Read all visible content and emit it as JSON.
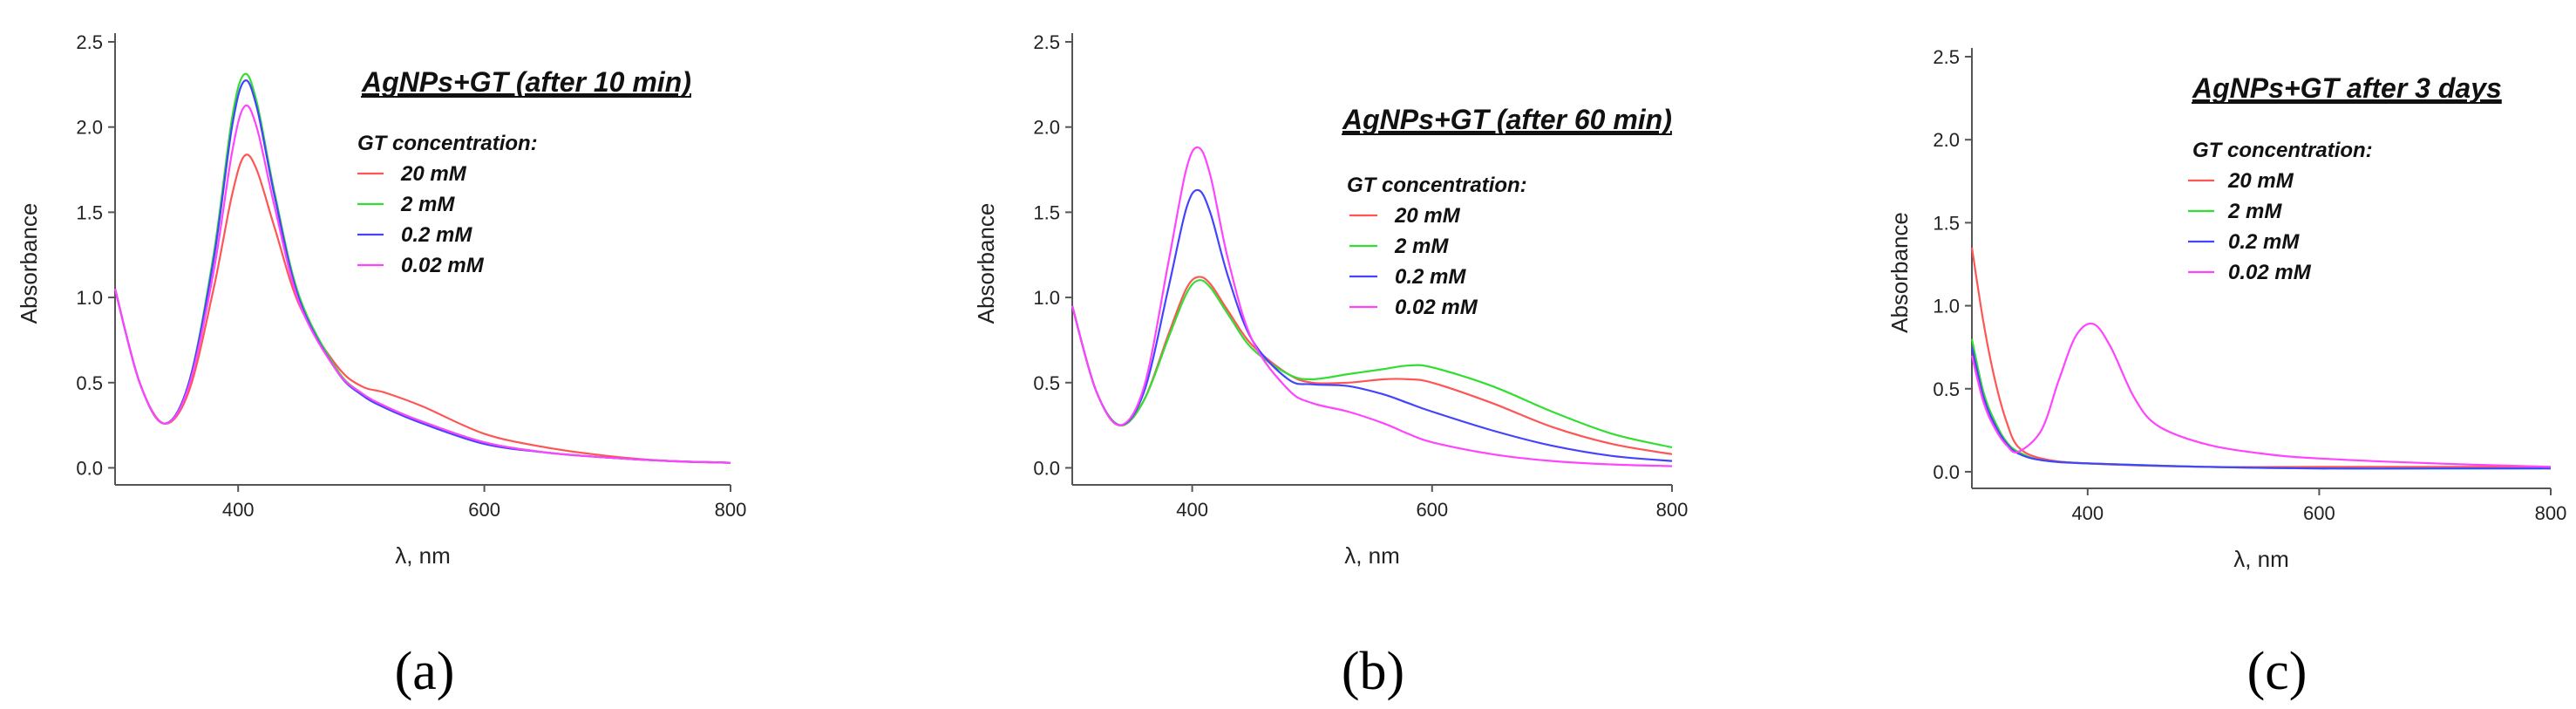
{
  "chart_data": [
    {
      "type": "line",
      "panel_label": "(a)",
      "title": "AgNPs+GT (after 10 min)",
      "xlabel": "λ, nm",
      "ylabel": "Absorbance",
      "xlim": [
        300,
        800
      ],
      "ylim": [
        -0.1,
        2.5
      ],
      "xticks": [
        400,
        600,
        800
      ],
      "yticks": [
        0.0,
        0.5,
        1.0,
        1.5,
        2.0,
        2.5
      ],
      "legend_title": "GT concentration:",
      "legend_position": "top-right",
      "series": [
        {
          "name": "20 mM",
          "color": "#ff5555",
          "x": [
            300,
            320,
            340,
            360,
            380,
            395,
            405,
            415,
            430,
            450,
            480,
            500,
            520,
            550,
            600,
            650,
            700,
            750,
            800
          ],
          "y": [
            1.05,
            0.5,
            0.26,
            0.45,
            1.05,
            1.6,
            1.83,
            1.75,
            1.4,
            0.95,
            0.6,
            0.48,
            0.44,
            0.36,
            0.2,
            0.12,
            0.07,
            0.04,
            0.03
          ]
        },
        {
          "name": "2 mM",
          "color": "#33dd33",
          "x": [
            300,
            320,
            340,
            360,
            380,
            395,
            405,
            415,
            430,
            450,
            480,
            500,
            520,
            550,
            600,
            650,
            700,
            750,
            800
          ],
          "y": [
            1.05,
            0.5,
            0.26,
            0.5,
            1.25,
            2.05,
            2.31,
            2.15,
            1.6,
            1.0,
            0.58,
            0.44,
            0.36,
            0.27,
            0.15,
            0.09,
            0.06,
            0.04,
            0.03
          ]
        },
        {
          "name": "0.2 mM",
          "color": "#4444ff",
          "x": [
            300,
            320,
            340,
            360,
            380,
            395,
            405,
            415,
            430,
            450,
            480,
            500,
            520,
            550,
            600,
            650,
            700,
            750,
            800
          ],
          "y": [
            1.05,
            0.5,
            0.26,
            0.5,
            1.22,
            2.0,
            2.27,
            2.12,
            1.58,
            0.98,
            0.57,
            0.43,
            0.35,
            0.26,
            0.14,
            0.09,
            0.06,
            0.04,
            0.03
          ]
        },
        {
          "name": "0.02 mM",
          "color": "#ff44ff",
          "x": [
            300,
            320,
            340,
            360,
            380,
            395,
            405,
            415,
            430,
            450,
            480,
            500,
            520,
            550,
            600,
            650,
            700,
            750,
            800
          ],
          "y": [
            1.05,
            0.5,
            0.26,
            0.48,
            1.15,
            1.85,
            2.12,
            2.0,
            1.52,
            0.96,
            0.57,
            0.44,
            0.36,
            0.27,
            0.15,
            0.09,
            0.06,
            0.04,
            0.03
          ]
        }
      ]
    },
    {
      "type": "line",
      "panel_label": "(b)",
      "title": "AgNPs+GT (after 60 min)",
      "xlabel": "λ, nm",
      "ylabel": "Absorbance",
      "xlim": [
        300,
        800
      ],
      "ylim": [
        -0.1,
        2.5
      ],
      "xticks": [
        400,
        600,
        800
      ],
      "yticks": [
        0.0,
        0.5,
        1.0,
        1.5,
        2.0,
        2.5
      ],
      "legend_title": "GT concentration:",
      "legend_position": "top-right",
      "series": [
        {
          "name": "20 mM",
          "color": "#ff5555",
          "x": [
            300,
            320,
            340,
            360,
            380,
            395,
            405,
            415,
            430,
            450,
            480,
            500,
            530,
            560,
            580,
            600,
            650,
            700,
            750,
            800
          ],
          "y": [
            0.95,
            0.45,
            0.25,
            0.4,
            0.78,
            1.05,
            1.12,
            1.08,
            0.92,
            0.72,
            0.55,
            0.5,
            0.5,
            0.52,
            0.52,
            0.5,
            0.38,
            0.24,
            0.14,
            0.08
          ]
        },
        {
          "name": "2 mM",
          "color": "#33dd33",
          "x": [
            300,
            320,
            340,
            360,
            380,
            395,
            405,
            415,
            430,
            450,
            480,
            500,
            530,
            560,
            580,
            600,
            650,
            700,
            750,
            800
          ],
          "y": [
            0.95,
            0.45,
            0.25,
            0.4,
            0.76,
            1.02,
            1.1,
            1.06,
            0.9,
            0.7,
            0.55,
            0.52,
            0.55,
            0.58,
            0.6,
            0.59,
            0.48,
            0.33,
            0.2,
            0.12
          ]
        },
        {
          "name": "0.2 mM",
          "color": "#4444ff",
          "x": [
            300,
            320,
            340,
            360,
            380,
            395,
            405,
            415,
            430,
            450,
            480,
            500,
            530,
            560,
            580,
            600,
            650,
            700,
            750,
            800
          ],
          "y": [
            0.95,
            0.45,
            0.25,
            0.45,
            1.05,
            1.52,
            1.63,
            1.5,
            1.12,
            0.75,
            0.52,
            0.49,
            0.48,
            0.43,
            0.38,
            0.33,
            0.22,
            0.13,
            0.07,
            0.04
          ]
        },
        {
          "name": "0.02 mM",
          "color": "#ff44ff",
          "x": [
            300,
            320,
            340,
            360,
            380,
            395,
            405,
            415,
            430,
            450,
            480,
            500,
            530,
            560,
            580,
            600,
            650,
            700,
            750,
            800
          ],
          "y": [
            0.95,
            0.45,
            0.25,
            0.48,
            1.2,
            1.75,
            1.88,
            1.72,
            1.22,
            0.75,
            0.46,
            0.38,
            0.33,
            0.26,
            0.2,
            0.15,
            0.08,
            0.04,
            0.02,
            0.01
          ]
        }
      ]
    },
    {
      "type": "line",
      "panel_label": "(c)",
      "title": "AgNPs+GT after 3 days",
      "xlabel": "λ, nm",
      "ylabel": "Absorbance",
      "xlim": [
        300,
        800
      ],
      "ylim": [
        -0.1,
        2.5
      ],
      "xticks": [
        400,
        600,
        800
      ],
      "yticks": [
        0.0,
        0.5,
        1.0,
        1.5,
        2.0,
        2.5
      ],
      "legend_title": "GT concentration:",
      "legend_position": "top-right",
      "series": [
        {
          "name": "20 mM",
          "color": "#ff5555",
          "x": [
            300,
            310,
            320,
            330,
            340,
            360,
            400,
            500,
            600,
            700,
            800
          ],
          "y": [
            1.35,
            0.9,
            0.55,
            0.3,
            0.15,
            0.08,
            0.05,
            0.03,
            0.03,
            0.03,
            0.03
          ]
        },
        {
          "name": "2 mM",
          "color": "#33dd33",
          "x": [
            300,
            310,
            320,
            330,
            340,
            360,
            400,
            500,
            600,
            700,
            800
          ],
          "y": [
            0.8,
            0.48,
            0.3,
            0.18,
            0.12,
            0.07,
            0.05,
            0.03,
            0.02,
            0.02,
            0.02
          ]
        },
        {
          "name": "0.2 mM",
          "color": "#4444ff",
          "x": [
            300,
            310,
            320,
            330,
            340,
            360,
            400,
            500,
            600,
            700,
            800
          ],
          "y": [
            0.75,
            0.45,
            0.28,
            0.17,
            0.11,
            0.07,
            0.05,
            0.03,
            0.02,
            0.02,
            0.02
          ]
        },
        {
          "name": "0.02 mM",
          "color": "#ff44ff",
          "x": [
            300,
            310,
            320,
            330,
            340,
            360,
            375,
            390,
            405,
            420,
            440,
            460,
            500,
            550,
            600,
            700,
            800
          ],
          "y": [
            0.7,
            0.42,
            0.26,
            0.16,
            0.12,
            0.25,
            0.55,
            0.82,
            0.89,
            0.75,
            0.45,
            0.28,
            0.17,
            0.11,
            0.08,
            0.05,
            0.03
          ]
        }
      ]
    }
  ]
}
